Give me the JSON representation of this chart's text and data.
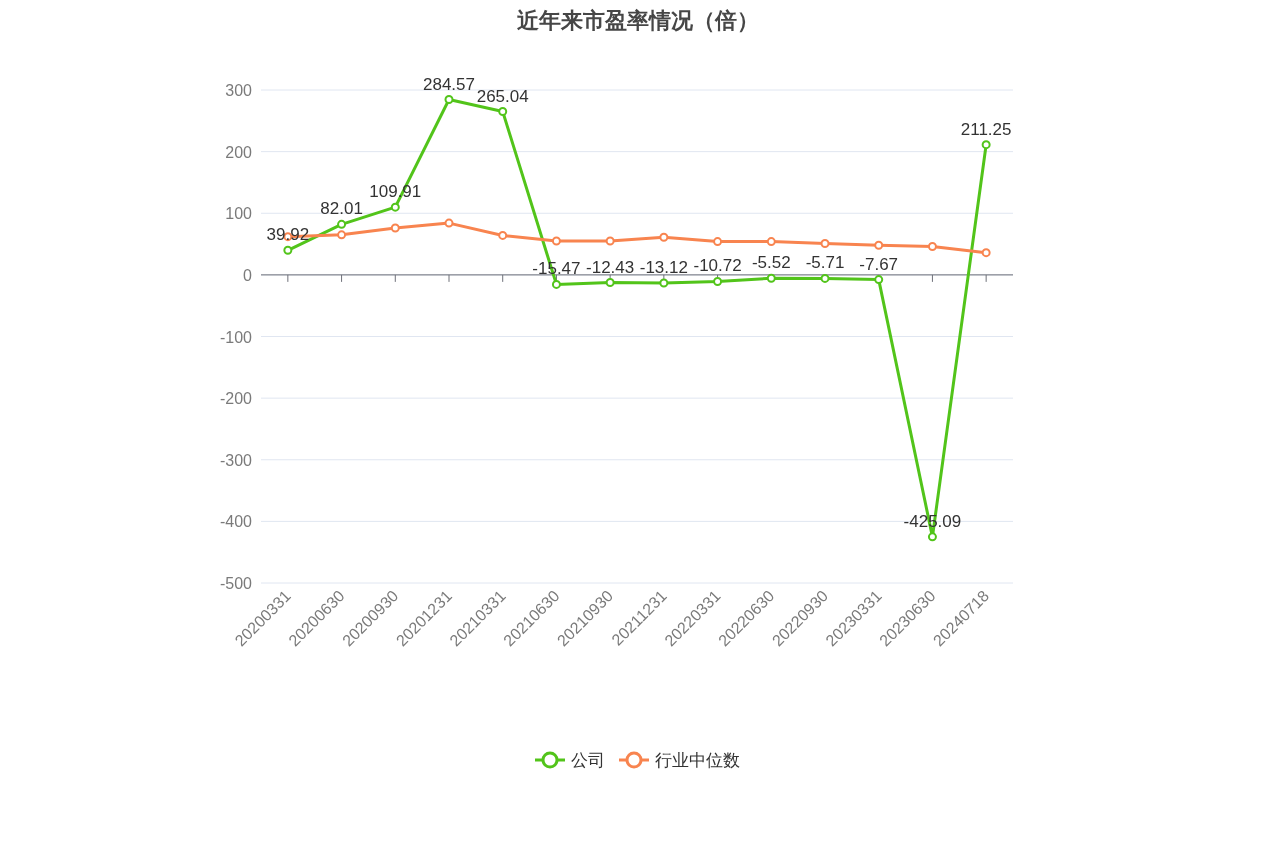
{
  "chart_data": {
    "type": "line",
    "title": "近年来市盈率情况（倍）",
    "categories": [
      "20200331",
      "20200630",
      "20200930",
      "20201231",
      "20210331",
      "20210630",
      "20210930",
      "20211231",
      "20220331",
      "20220630",
      "20220930",
      "20230331",
      "20230630",
      "20240718"
    ],
    "series": [
      {
        "name": "公司",
        "color": "#52c41a",
        "values": [
          39.92,
          82.01,
          109.91,
          284.57,
          265.04,
          -15.47,
          -12.43,
          -13.12,
          -10.72,
          -5.52,
          -5.71,
          -7.67,
          -425.09,
          211.25
        ],
        "value_labels": [
          "39.92",
          "82.01",
          "109.91",
          "284.57",
          "265.04",
          "-15.47",
          "-12.43",
          "-13.12",
          "-10.72",
          "-5.52",
          "-5.71",
          "-7.67",
          "-425.09",
          "211.25"
        ]
      },
      {
        "name": "行业中位数",
        "color": "#f8844f",
        "values": [
          62,
          65,
          76,
          84,
          64,
          55,
          55,
          61,
          54,
          54,
          51,
          48,
          46,
          36
        ]
      }
    ],
    "ylim": [
      -500,
      300
    ],
    "yticks": [
      -500,
      -400,
      -300,
      -200,
      -100,
      0,
      100,
      200,
      300
    ],
    "grid": "y",
    "legend": "bottom",
    "marker": "circle",
    "line_style": "solid"
  }
}
